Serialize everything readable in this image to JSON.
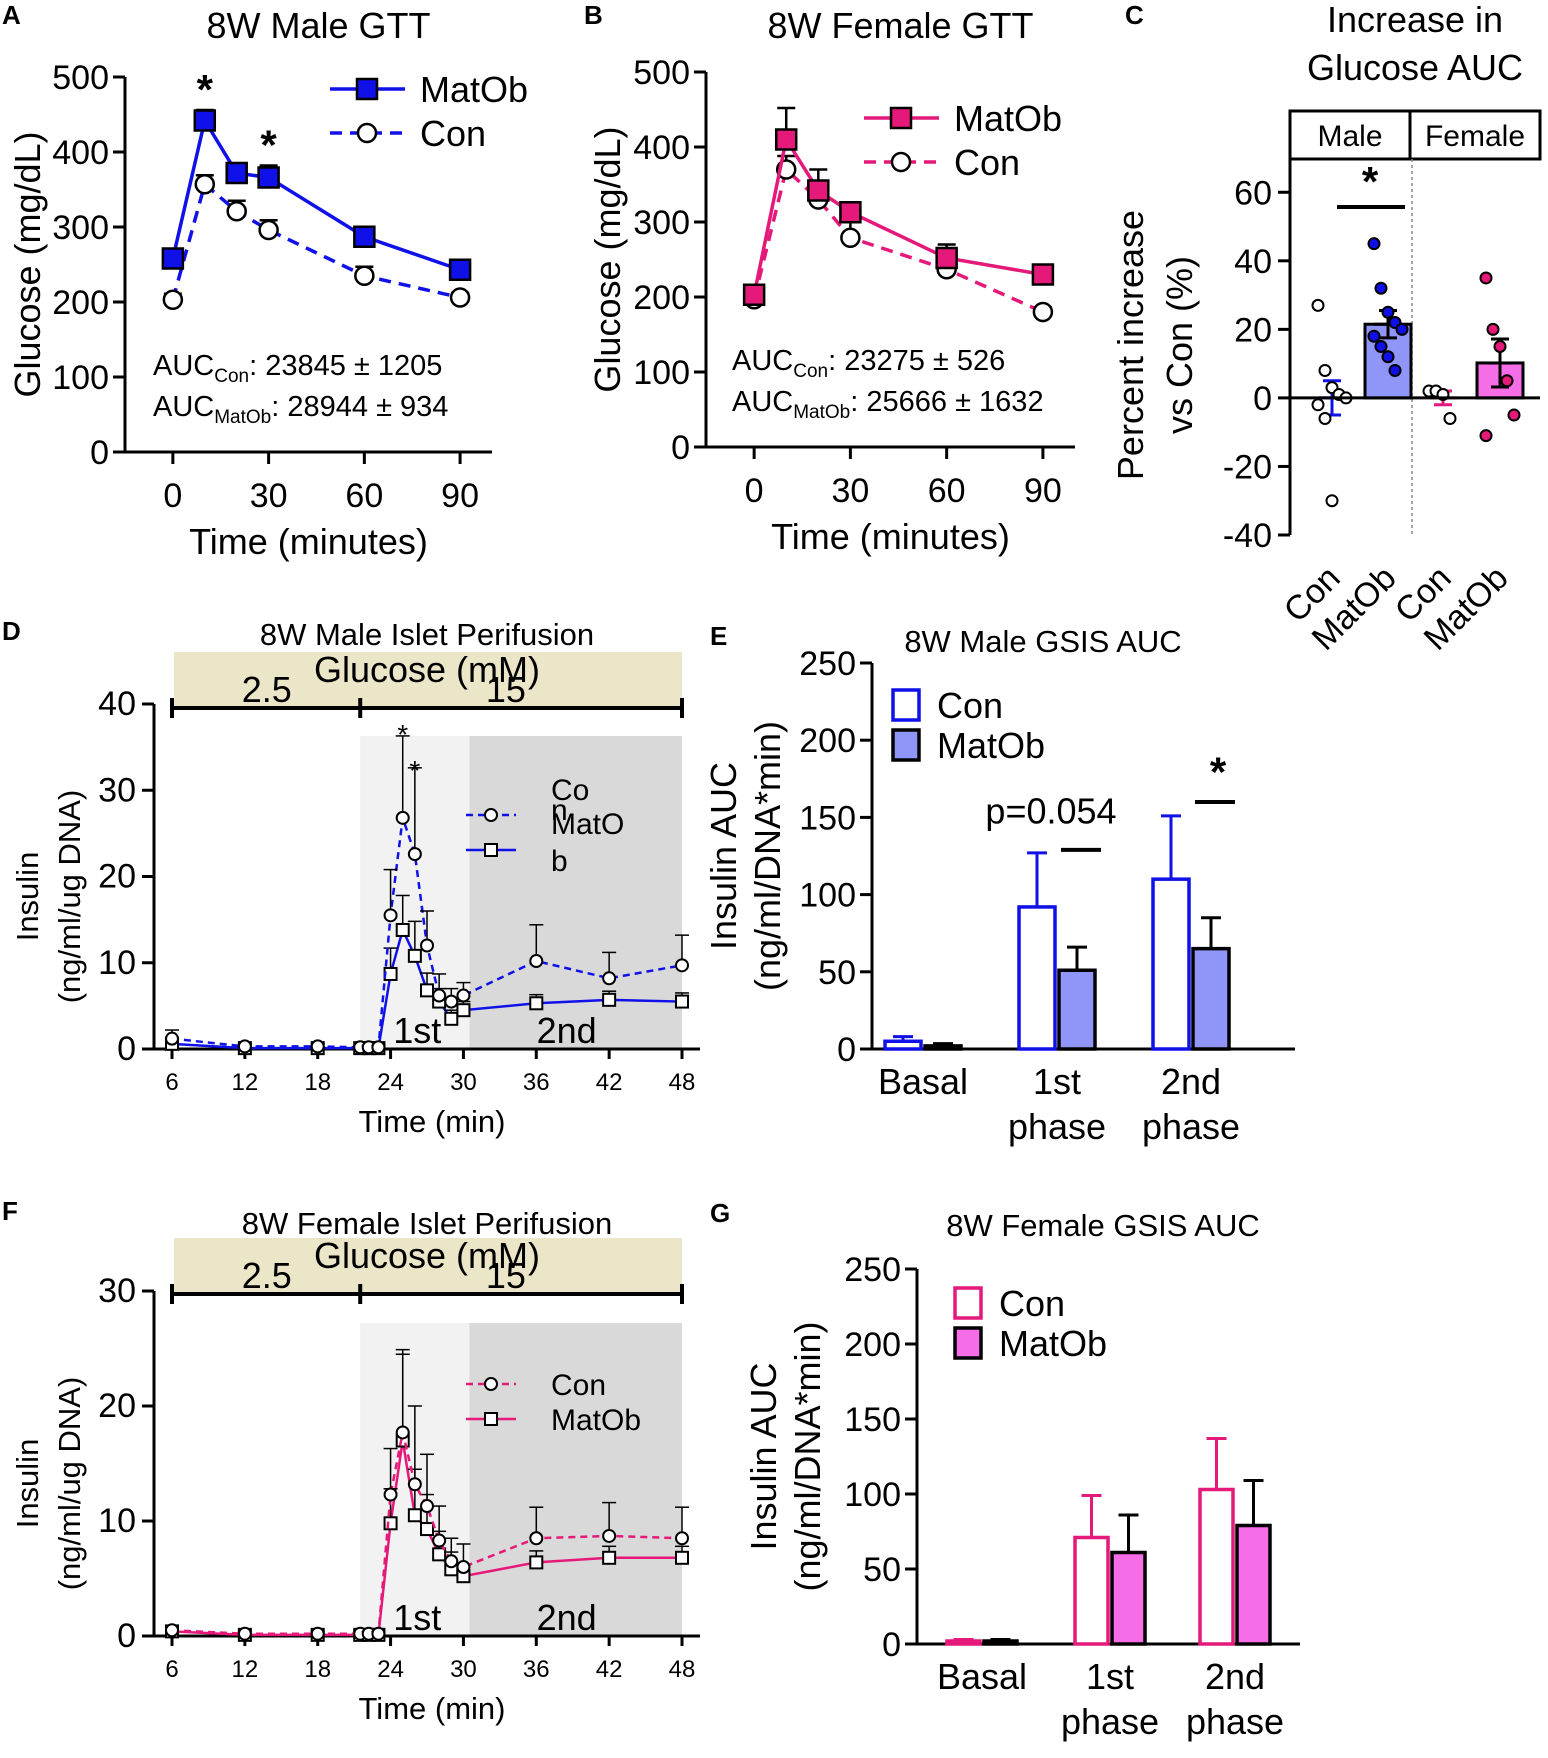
{
  "colors": {
    "male_blue": "#1010e8",
    "male_fill": "#8f96f7",
    "female_pink": "#e5197a",
    "female_fill": "#f56ee8",
    "glucose_band": "#ece6c8",
    "phase1_shade": "#f2f2f2",
    "phase2_shade": "#d9d9d9"
  },
  "panels": {
    "A": "A",
    "B": "B",
    "C": "C",
    "D": "D",
    "E": "E",
    "F": "F",
    "G": "G"
  },
  "chart_data": [
    {
      "id": "A",
      "type": "line",
      "title": "8W Male GTT",
      "xlabel": "Time (minutes)",
      "ylabel": "Glucose (mg/dL)",
      "xlim": [
        -15,
        100
      ],
      "ylim": [
        0,
        500
      ],
      "xticks": [
        0,
        30,
        60,
        90
      ],
      "yticks": [
        0,
        100,
        200,
        300,
        400,
        500
      ],
      "series": [
        {
          "name": "MatOb",
          "x": [
            0,
            10,
            20,
            30,
            60,
            90
          ],
          "values": [
            258,
            442,
            372,
            366,
            287,
            243
          ],
          "err": [
            10,
            14,
            12,
            16,
            8,
            7
          ]
        },
        {
          "name": "Con",
          "x": [
            0,
            10,
            20,
            30,
            60,
            90
          ],
          "values": [
            203,
            357,
            321,
            296,
            235,
            206
          ],
          "err": [
            8,
            12,
            14,
            13,
            12,
            6
          ]
        }
      ],
      "stars": [
        {
          "x": 10,
          "text": "*"
        },
        {
          "x": 30,
          "text": "*"
        }
      ],
      "auc": [
        {
          "label": "AUC",
          "sub": "Con",
          "value": ": 23845 ± 1205"
        },
        {
          "label": "AUC",
          "sub": "MatOb",
          "value": ": 28944 ± 934"
        }
      ]
    },
    {
      "id": "B",
      "type": "line",
      "title": "8W Female GTT",
      "xlabel": "Time (minutes)",
      "ylabel": "Glucose (mg/dL)",
      "xlim": [
        -15,
        100
      ],
      "ylim": [
        0,
        500
      ],
      "xticks": [
        0,
        30,
        60,
        90
      ],
      "yticks": [
        0,
        100,
        200,
        300,
        400,
        500
      ],
      "series": [
        {
          "name": "MatOb",
          "x": [
            0,
            10,
            20,
            30,
            60,
            90
          ],
          "values": [
            203,
            410,
            342,
            313,
            252,
            230
          ],
          "err": [
            12,
            42,
            28,
            10,
            18,
            12
          ]
        },
        {
          "name": "Con",
          "x": [
            0,
            10,
            20,
            30,
            60,
            90
          ],
          "values": [
            197,
            370,
            330,
            279,
            237,
            180
          ],
          "err": [
            16,
            18,
            18,
            24,
            18,
            6
          ]
        }
      ],
      "auc": [
        {
          "label": "AUC",
          "sub": "Con",
          "value": ": 23275 ± 526"
        },
        {
          "label": "AUC",
          "sub": "MatOb",
          "value": ": 25666 ± 1632"
        }
      ]
    },
    {
      "id": "C",
      "type": "bar",
      "title_lines": [
        "Increase in",
        "Glucose AUC"
      ],
      "ylabel_lines": [
        "Percent increase",
        "vs Con (%)"
      ],
      "ylim": [
        -40,
        70
      ],
      "yticks": [
        -40,
        -20,
        0,
        20,
        40,
        60
      ],
      "groups": [
        "Male",
        "Female"
      ],
      "categories": [
        "Con",
        "MatOb",
        "Con",
        "MatOb"
      ],
      "values": [
        0,
        21.5,
        0,
        10.2
      ],
      "err": [
        5,
        4,
        2,
        7
      ],
      "points": [
        [
          27,
          8,
          3,
          1,
          0,
          -2,
          -6,
          -30
        ],
        [
          45,
          32,
          25,
          22,
          20,
          18,
          15,
          12,
          8
        ],
        [
          2,
          2,
          1,
          -6
        ],
        [
          35,
          20,
          15,
          5,
          -5,
          -11
        ]
      ],
      "star": "*"
    },
    {
      "id": "D",
      "type": "line",
      "title": "8W Male Islet Perifusion",
      "band_title": "Glucose (mM)",
      "band_low": "2.5",
      "band_high": "15",
      "phase1": "1st",
      "phase2": "2nd",
      "xlabel": "Time (min)",
      "ylabel_lines": [
        "Insulin",
        "(ng/ml/ug DNA)"
      ],
      "xlim": [
        6,
        48
      ],
      "ylim": [
        0,
        40
      ],
      "xticks": [
        6,
        12,
        18,
        24,
        30,
        36,
        42,
        48
      ],
      "yticks": [
        0,
        10,
        20,
        30,
        40
      ],
      "series": [
        {
          "name": "Con",
          "legend_lines": [
            "Co",
            "n"
          ],
          "x": [
            6,
            12,
            18,
            21.5,
            22.2,
            23,
            24,
            25,
            26,
            27,
            28,
            29,
            30,
            36,
            42,
            48
          ],
          "values": [
            1.2,
            0.3,
            0.3,
            0.2,
            0.2,
            0.2,
            15.5,
            26.8,
            22.6,
            12.0,
            6.2,
            5.5,
            6.2,
            10.2,
            8.2,
            9.7
          ],
          "err": [
            1,
            0.3,
            0.3,
            0.2,
            0.2,
            0.2,
            5.3,
            9.5,
            10,
            4,
            2.5,
            1.5,
            1.5,
            4.2,
            3,
            3.5
          ]
        },
        {
          "name": "MatOb",
          "legend_lines": [
            "MatO",
            "b"
          ],
          "x": [
            6,
            12,
            18,
            21.5,
            22.2,
            23,
            24,
            25,
            26,
            27,
            28,
            29,
            30,
            36,
            42,
            48
          ],
          "values": [
            0.6,
            0.1,
            0.1,
            0.1,
            0.1,
            0.1,
            8.7,
            13.8,
            10.8,
            6.8,
            5.5,
            3.5,
            4.5,
            5.3,
            5.7,
            5.5
          ],
          "err": [
            0.5,
            0.1,
            0.1,
            0.1,
            0.1,
            0.1,
            3,
            4,
            4,
            2,
            1.5,
            1,
            1,
            1,
            1,
            1
          ]
        }
      ],
      "stars": [
        "*",
        "*"
      ]
    },
    {
      "id": "E",
      "type": "bar",
      "title": "8W Male GSIS AUC",
      "ylabel_lines": [
        "Insulin AUC",
        "(ng/ml/DNA*min)"
      ],
      "ylim": [
        0,
        250
      ],
      "yticks": [
        0,
        50,
        100,
        150,
        200,
        250
      ],
      "categories": [
        "Basal",
        "1st\nphase",
        "2nd\nphase"
      ],
      "category_lines": [
        [
          "Basal"
        ],
        [
          "1st",
          "phase"
        ],
        [
          "2nd",
          "phase"
        ]
      ],
      "series": [
        {
          "name": "Con",
          "values": [
            5,
            92,
            110
          ],
          "err": [
            3,
            35,
            41
          ]
        },
        {
          "name": "MatOb",
          "values": [
            2,
            51,
            65
          ],
          "err": [
            1.5,
            15,
            20
          ]
        }
      ],
      "pvalue": "p=0.054",
      "star": "*"
    },
    {
      "id": "F",
      "type": "line",
      "title": "8W Female Islet Perifusion",
      "band_title": "Glucose (mM)",
      "band_low": "2.5",
      "band_high": "15",
      "phase1": "1st",
      "phase2": "2nd",
      "xlabel": "Time (min)",
      "ylabel_lines": [
        "Insulin",
        "(ng/ml/ug DNA)"
      ],
      "xlim": [
        6,
        48
      ],
      "ylim": [
        0,
        30
      ],
      "xticks": [
        6,
        12,
        18,
        24,
        30,
        36,
        42,
        48
      ],
      "yticks": [
        0,
        10,
        20,
        30
      ],
      "series": [
        {
          "name": "Con",
          "x": [
            6,
            12,
            18,
            21.5,
            22.2,
            23,
            24,
            25,
            26,
            27,
            28,
            29,
            30,
            36,
            42,
            48
          ],
          "values": [
            0.5,
            0.2,
            0.2,
            0.2,
            0.2,
            0.2,
            12.3,
            17.7,
            13.2,
            11.3,
            8.3,
            6.5,
            6.0,
            8.5,
            8.7,
            8.5
          ],
          "err": [
            0.4,
            0.2,
            0.2,
            0.2,
            0.2,
            0.2,
            4,
            7.2,
            6.8,
            4.5,
            3,
            2,
            2,
            2.7,
            2.9,
            2.7
          ]
        },
        {
          "name": "MatOb",
          "x": [
            6,
            12,
            18,
            21.5,
            22.2,
            23,
            24,
            25,
            26,
            27,
            28,
            29,
            30,
            36,
            42,
            48
          ],
          "values": [
            0.4,
            0.1,
            0.1,
            0.1,
            0.1,
            0.1,
            9.8,
            17.0,
            10.5,
            9.3,
            7.1,
            5.8,
            5.2,
            6.4,
            6.8,
            6.8
          ],
          "err": [
            0.3,
            0.1,
            0.1,
            0.1,
            0.1,
            0.1,
            3,
            7.5,
            4,
            3,
            2,
            1.5,
            1,
            1,
            1,
            1
          ]
        }
      ]
    },
    {
      "id": "G",
      "type": "bar",
      "title": "8W Female GSIS AUC",
      "ylabel_lines": [
        "Insulin AUC",
        "(ng/ml/DNA*min)"
      ],
      "ylim": [
        0,
        250
      ],
      "yticks": [
        0,
        50,
        100,
        150,
        200,
        250
      ],
      "categories": [
        "Basal",
        "1st\nphase",
        "2nd\nphase"
      ],
      "category_lines": [
        [
          "Basal"
        ],
        [
          "1st",
          "phase"
        ],
        [
          "2nd",
          "phase"
        ]
      ],
      "series": [
        {
          "name": "Con",
          "values": [
            2,
            71,
            103
          ],
          "err": [
            1,
            28,
            34
          ]
        },
        {
          "name": "MatOb",
          "values": [
            2,
            61,
            79
          ],
          "err": [
            1,
            25,
            30
          ]
        }
      ]
    }
  ]
}
